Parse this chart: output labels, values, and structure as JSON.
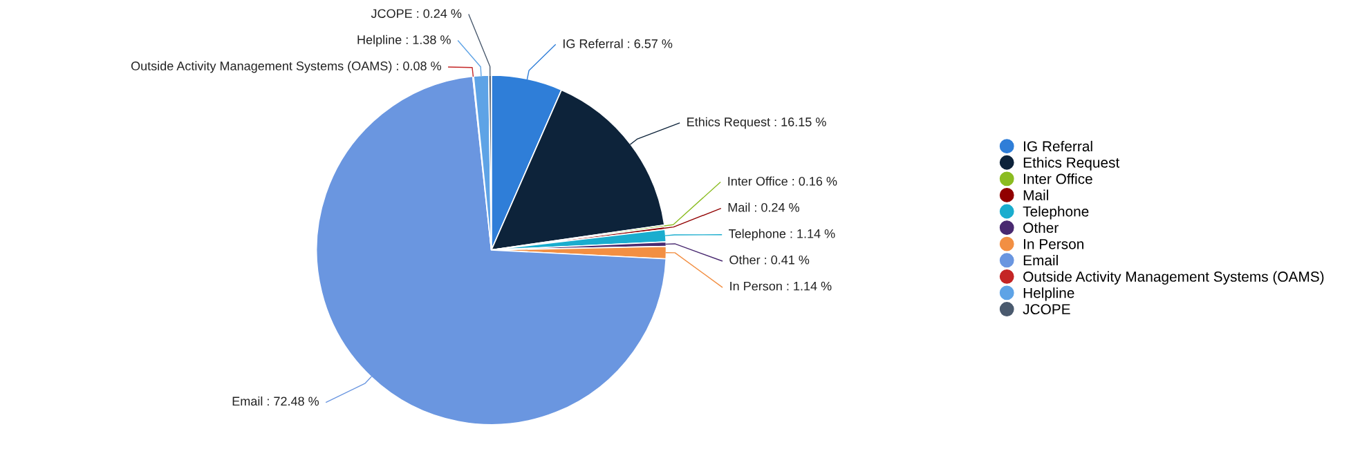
{
  "chart_data": {
    "type": "pie",
    "categories": [
      "IG Referral",
      "Ethics Request",
      "Inter Office",
      "Mail",
      "Telephone",
      "Other",
      "In Person",
      "Email",
      "Outside Activity Management Systems (OAMS)",
      "Helpline",
      "JCOPE"
    ],
    "values": [
      6.57,
      16.15,
      0.16,
      0.24,
      1.14,
      0.41,
      1.14,
      72.48,
      0.08,
      1.38,
      0.24
    ],
    "colors": [
      "#2f7ed8",
      "#0d233a",
      "#8bbc21",
      "#910000",
      "#1aadce",
      "#492970",
      "#f28f43",
      "#6a96e0",
      "#c42525",
      "#5ea3e6",
      "#4a5a6e"
    ],
    "value_labels": [
      "IG Referral : 6.57 %",
      "Ethics Request : 16.15 %",
      "Inter Office : 0.16 %",
      "Mail : 0.24 %",
      "Telephone : 1.14 %",
      "Other : 0.41 %",
      "In Person : 1.14 %",
      "Email : 72.48 %",
      "Outside Activity Management Systems (OAMS) : 0.08 %",
      "Helpline : 1.38 %",
      "JCOPE : 0.24 %"
    ],
    "legend": "right"
  }
}
